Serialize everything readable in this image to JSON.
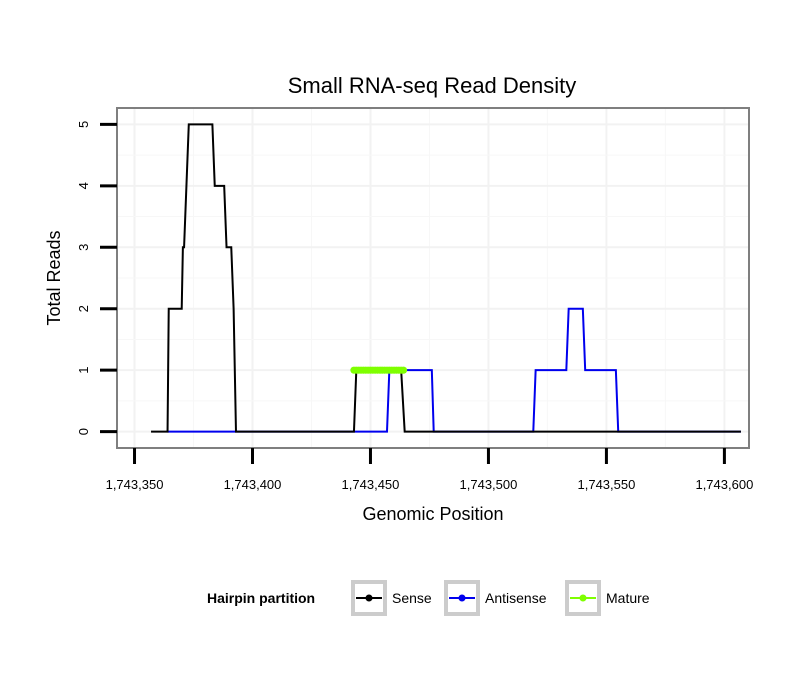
{
  "chart_data": {
    "type": "line",
    "title": "Small RNA-seq Read Density",
    "xlabel": "Genomic Position",
    "ylabel": "Total Reads",
    "xlim": [
      1743343,
      1743610
    ],
    "ylim": [
      -0.25,
      5.25
    ],
    "x_ticks": [
      1743350,
      1743400,
      1743450,
      1743500,
      1743550,
      1743600
    ],
    "x_tick_labels": [
      "1,743,350",
      "1,743,400",
      "1,743,450",
      "1,743,500",
      "1,743,550",
      "1,743,600"
    ],
    "y_ticks": [
      0,
      1,
      2,
      3,
      4,
      5
    ],
    "y_tick_labels": [
      "0",
      "1",
      "2",
      "3",
      "4",
      "5"
    ],
    "grid": true,
    "legend_position": "bottom",
    "legend_title": "Hairpin partition",
    "series": [
      {
        "name": "Sense",
        "color": "#000000",
        "x": [
          1743357,
          1743364,
          1743364.5,
          1743370,
          1743370.5,
          1743371,
          1743373,
          1743375,
          1743383,
          1743384,
          1743388,
          1743389,
          1743391,
          1743392,
          1743393,
          1743443,
          1743444,
          1743463,
          1743464.5,
          1743607
        ],
        "y": [
          0,
          0,
          2,
          2,
          3,
          3,
          5,
          5,
          5,
          4,
          4,
          3,
          3,
          2,
          0,
          0,
          1,
          1,
          0,
          0
        ]
      },
      {
        "name": "Antisense",
        "color": "#0000ee",
        "x": [
          1743364,
          1743457,
          1743458,
          1743476,
          1743476.8,
          1743519,
          1743520,
          1743533,
          1743534,
          1743540,
          1743541,
          1743554,
          1743555,
          1743607
        ],
        "y": [
          0,
          0,
          1,
          1,
          0,
          0,
          1,
          1,
          2,
          2,
          1,
          1,
          0,
          0
        ]
      },
      {
        "name": "Mature",
        "color": "#7fff00",
        "x": [
          1743443,
          1743444,
          1743445,
          1743446,
          1743447,
          1743448,
          1743449,
          1743450,
          1743451,
          1743452,
          1743453,
          1743454,
          1743455,
          1743456,
          1743457,
          1743458,
          1743459,
          1743460,
          1743461,
          1743462,
          1743463,
          1743464
        ],
        "y": [
          1,
          1,
          1,
          1,
          1,
          1,
          1,
          1,
          1,
          1,
          1,
          1,
          1,
          1,
          1,
          1,
          1,
          1,
          1,
          1,
          1,
          1
        ]
      }
    ]
  }
}
